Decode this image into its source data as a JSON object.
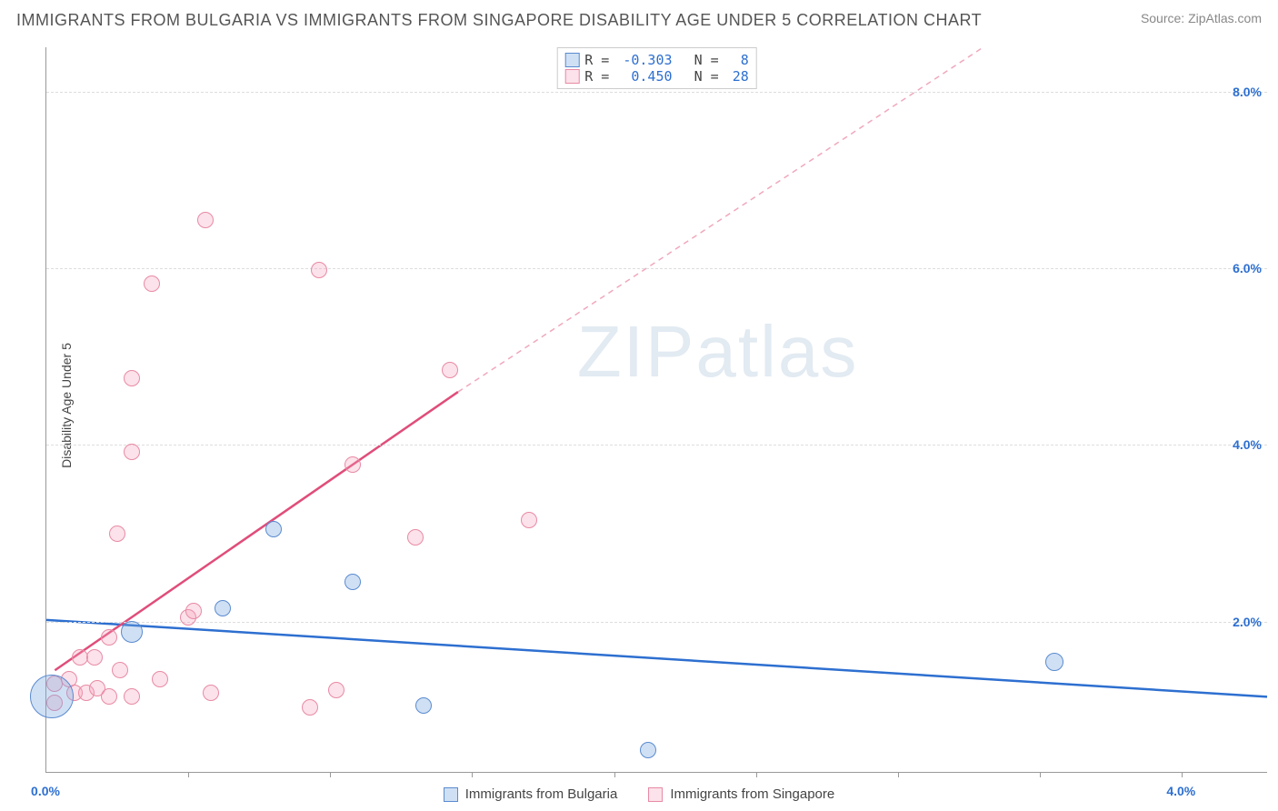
{
  "title": "IMMIGRANTS FROM BULGARIA VS IMMIGRANTS FROM SINGAPORE DISABILITY AGE UNDER 5 CORRELATION CHART",
  "source": "Source: ZipAtlas.com",
  "watermark_a": "ZIP",
  "watermark_b": "atlas",
  "y_axis_label": "Disability Age Under 5",
  "chart": {
    "type": "scatter",
    "xlim": [
      0.0,
      4.3
    ],
    "ylim": [
      0.3,
      8.5
    ],
    "y_gridlines": [
      2.0,
      4.0,
      6.0,
      8.0
    ],
    "y_tick_labels": [
      "2.0%",
      "4.0%",
      "6.0%",
      "8.0%"
    ],
    "y_tick_color": "#2d6fd0",
    "x_tick_marks": [
      0.5,
      1.0,
      1.5,
      2.0,
      2.5,
      3.0,
      3.5,
      4.0
    ],
    "x_tick_labels": [
      {
        "v": 0.0,
        "label": "0.0%"
      },
      {
        "v": 4.0,
        "label": "4.0%"
      }
    ],
    "x_tick_color": "#2d6fd0",
    "grid_color": "#dddddd",
    "axis_color": "#999999",
    "background_color": "#ffffff",
    "series": {
      "bulgaria": {
        "label": "Immigrants from Bulgaria",
        "fill": "rgba(120,165,224,0.35)",
        "stroke": "#5a8bd0",
        "marker_radius": 9,
        "points": [
          {
            "x": 0.02,
            "y": 1.15,
            "r": 24
          },
          {
            "x": 0.3,
            "y": 1.88,
            "r": 12
          },
          {
            "x": 0.62,
            "y": 2.15,
            "r": 9
          },
          {
            "x": 0.8,
            "y": 3.05,
            "r": 9
          },
          {
            "x": 1.08,
            "y": 2.45,
            "r": 9
          },
          {
            "x": 1.33,
            "y": 1.05,
            "r": 9
          },
          {
            "x": 2.12,
            "y": 0.55,
            "r": 9
          },
          {
            "x": 3.55,
            "y": 1.55,
            "r": 10
          }
        ],
        "trend": {
          "color": "#2d6fd0",
          "width": 2.5,
          "x1": 0.0,
          "y1": 2.02,
          "x2": 4.3,
          "y2": 1.15,
          "dash": false
        }
      },
      "singapore": {
        "label": "Immigrants from Singapore",
        "fill": "rgba(245,160,185,0.30)",
        "stroke": "#e88aa5",
        "marker_radius": 9,
        "points": [
          {
            "x": 0.03,
            "y": 1.08
          },
          {
            "x": 0.03,
            "y": 1.3
          },
          {
            "x": 0.08,
            "y": 1.35
          },
          {
            "x": 0.1,
            "y": 1.2
          },
          {
            "x": 0.14,
            "y": 1.2
          },
          {
            "x": 0.18,
            "y": 1.25
          },
          {
            "x": 0.12,
            "y": 1.6
          },
          {
            "x": 0.17,
            "y": 1.6
          },
          {
            "x": 0.22,
            "y": 1.15
          },
          {
            "x": 0.26,
            "y": 1.45
          },
          {
            "x": 0.3,
            "y": 1.15
          },
          {
            "x": 0.22,
            "y": 1.82
          },
          {
            "x": 0.25,
            "y": 3.0
          },
          {
            "x": 0.3,
            "y": 3.92
          },
          {
            "x": 0.37,
            "y": 5.82
          },
          {
            "x": 0.3,
            "y": 4.75
          },
          {
            "x": 0.5,
            "y": 2.05
          },
          {
            "x": 0.52,
            "y": 2.12
          },
          {
            "x": 0.58,
            "y": 1.2
          },
          {
            "x": 0.56,
            "y": 6.55
          },
          {
            "x": 0.93,
            "y": 1.03
          },
          {
            "x": 0.96,
            "y": 5.98
          },
          {
            "x": 1.02,
            "y": 1.23
          },
          {
            "x": 1.08,
            "y": 3.78
          },
          {
            "x": 1.3,
            "y": 2.95
          },
          {
            "x": 1.42,
            "y": 4.85
          },
          {
            "x": 1.7,
            "y": 3.15
          },
          {
            "x": 0.4,
            "y": 1.35
          }
        ],
        "trend_solid": {
          "color": "#e04d7a",
          "width": 2.5,
          "x1": 0.03,
          "y1": 1.45,
          "x2": 1.45,
          "y2": 4.6
        },
        "trend_dash": {
          "color": "#f0a8bc",
          "width": 1.5,
          "x1": 1.45,
          "y1": 4.6,
          "x2": 3.3,
          "y2": 8.5
        }
      }
    },
    "legend_stats": [
      {
        "swatch_fill": "rgba(120,165,224,0.35)",
        "swatch_stroke": "#5a8bd0",
        "r_label": "R = ",
        "r_val": "-0.303",
        "n_label": "  N = ",
        "n_val": " 8"
      },
      {
        "swatch_fill": "rgba(245,160,185,0.30)",
        "swatch_stroke": "#e88aa5",
        "r_label": "R = ",
        "r_val": " 0.450",
        "n_label": "  N = ",
        "n_val": "28"
      }
    ],
    "stat_label_color": "#444444",
    "stat_value_color": "#2d6fd0"
  },
  "bottom_legend": [
    {
      "swatch_fill": "rgba(120,165,224,0.35)",
      "swatch_stroke": "#5a8bd0",
      "label": "Immigrants from Bulgaria"
    },
    {
      "swatch_fill": "rgba(245,160,185,0.30)",
      "swatch_stroke": "#e88aa5",
      "label": "Immigrants from Singapore"
    }
  ]
}
